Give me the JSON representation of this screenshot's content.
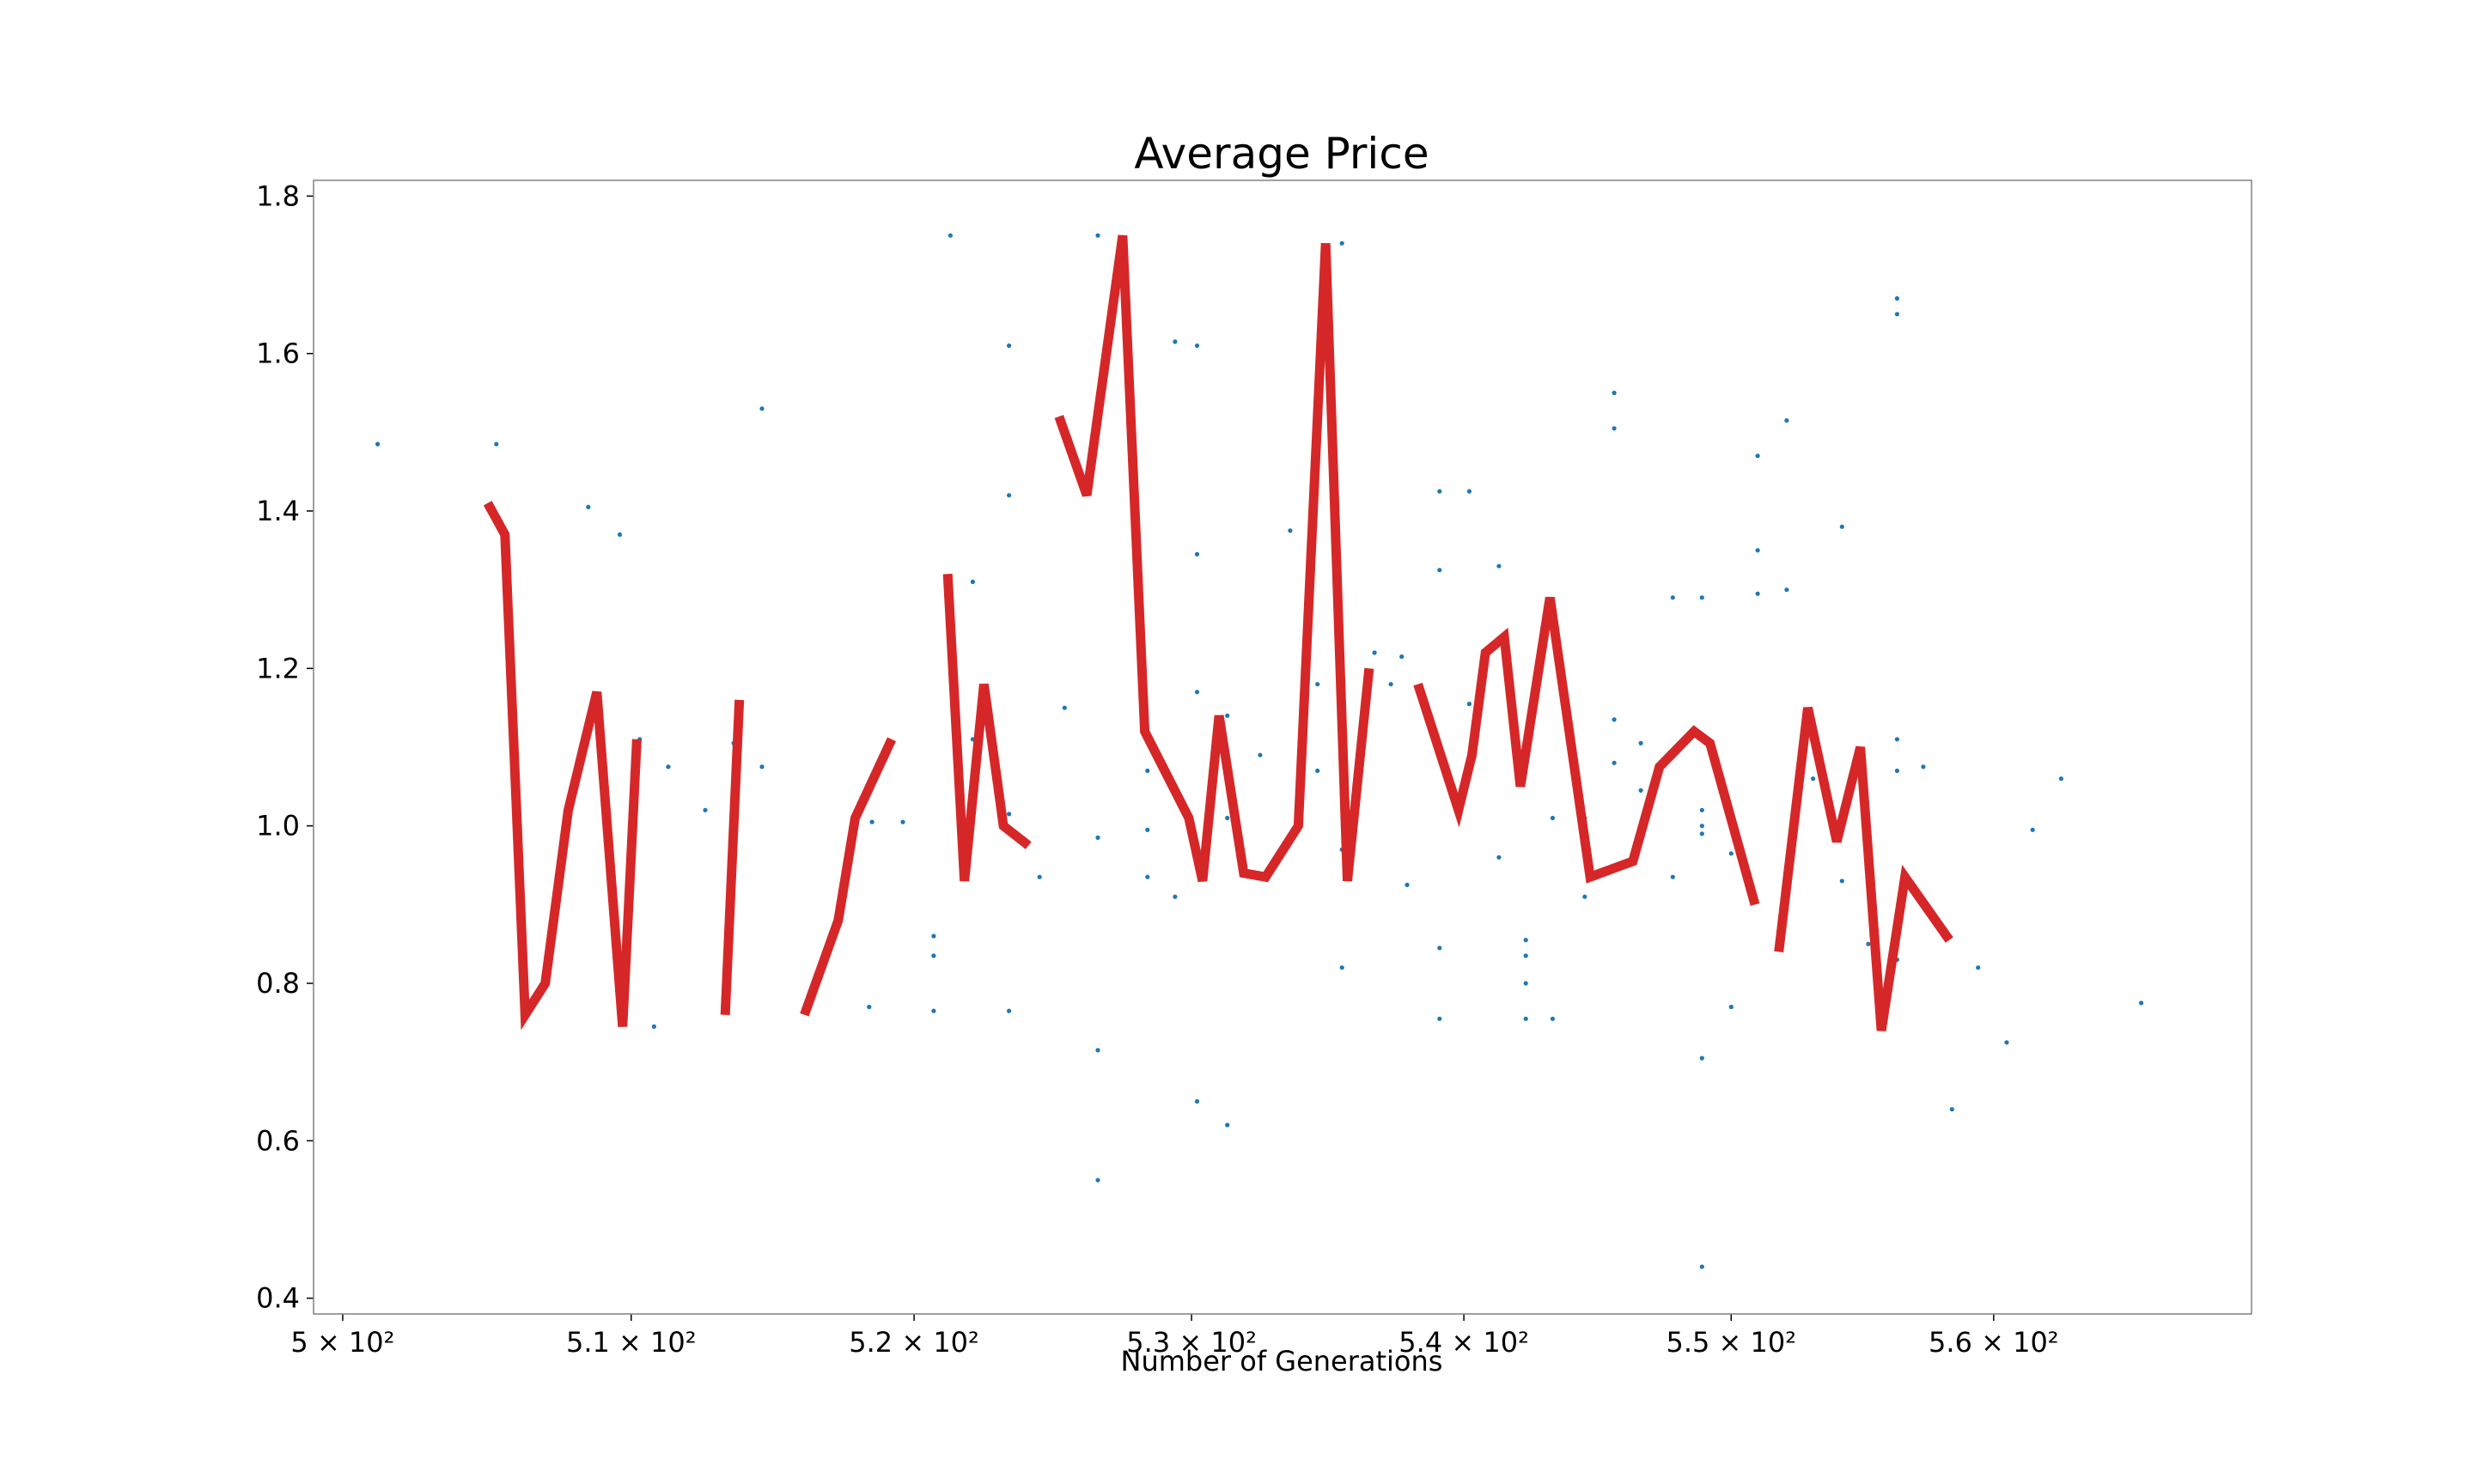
{
  "chart_data": {
    "type": "line",
    "title": "Average Price",
    "xlabel": "Number of Generations",
    "ylabel": "",
    "xscale": "log",
    "xlim": [
      499,
      570
    ],
    "ylim": [
      0.38,
      1.82
    ],
    "grid": false,
    "colors": {
      "line": "#d62728",
      "points": "#1f77b4",
      "frame": "#808080"
    },
    "x_ticks": [
      {
        "value": 500,
        "label": "5 × 10²"
      },
      {
        "value": 510,
        "label": "5.1 × 10²"
      },
      {
        "value": 520,
        "label": "5.2 × 10²"
      },
      {
        "value": 530,
        "label": "5.3 × 10²"
      },
      {
        "value": 540,
        "label": "5.4 × 10²"
      },
      {
        "value": 550,
        "label": "5.5 × 10²"
      },
      {
        "value": 560,
        "label": "5.6 × 10²"
      }
    ],
    "y_ticks": [
      {
        "value": 0.4,
        "label": "0.4"
      },
      {
        "value": 0.6,
        "label": "0.6"
      },
      {
        "value": 0.8,
        "label": "0.8"
      },
      {
        "value": 1.0,
        "label": "1.0"
      },
      {
        "value": 1.2,
        "label": "1.2"
      },
      {
        "value": 1.4,
        "label": "1.4"
      },
      {
        "value": 1.6,
        "label": "1.6"
      },
      {
        "value": 1.8,
        "label": "1.8"
      }
    ],
    "line_segments": [
      [
        [
          505,
          1.41
        ],
        [
          505.6,
          1.37
        ],
        [
          506.3,
          0.76
        ],
        [
          507,
          0.8
        ],
        [
          507.8,
          1.02
        ],
        [
          508.8,
          1.17
        ],
        [
          509.7,
          0.745
        ],
        [
          510.2,
          1.11
        ]
      ],
      [
        [
          513.3,
          0.76
        ],
        [
          513.8,
          1.16
        ]
      ],
      [
        [
          516.1,
          0.76
        ],
        [
          517.3,
          0.88
        ],
        [
          517.9,
          1.01
        ],
        [
          519.2,
          1.11
        ]
      ],
      [
        [
          521.2,
          1.32
        ],
        [
          521.8,
          0.93
        ],
        [
          522.5,
          1.18
        ],
        [
          523.2,
          1.0
        ],
        [
          524.1,
          0.975
        ]
      ],
      [
        [
          525.2,
          1.52
        ],
        [
          526.2,
          1.42
        ],
        [
          527.5,
          1.75
        ],
        [
          528.3,
          1.12
        ],
        [
          529.9,
          1.01
        ],
        [
          530.4,
          0.93
        ],
        [
          531,
          1.14
        ],
        [
          531.9,
          0.94
        ],
        [
          532.7,
          0.935
        ],
        [
          533.9,
          1.0
        ],
        [
          534.9,
          1.74
        ],
        [
          535.7,
          0.93
        ],
        [
          536.5,
          1.2
        ]
      ],
      [
        [
          538.3,
          1.18
        ],
        [
          539.8,
          1.02
        ],
        [
          540.3,
          1.09
        ],
        [
          540.8,
          1.22
        ],
        [
          541.5,
          1.24
        ],
        [
          542.1,
          1.05
        ],
        [
          543.2,
          1.29
        ],
        [
          544.7,
          0.935
        ],
        [
          546.3,
          0.955
        ],
        [
          547.3,
          1.075
        ],
        [
          548.6,
          1.12
        ],
        [
          549.2,
          1.105
        ],
        [
          550.9,
          0.9
        ]
      ],
      [
        [
          551.8,
          0.84
        ],
        [
          552.9,
          1.15
        ],
        [
          554,
          0.98
        ],
        [
          554.9,
          1.1
        ],
        [
          555.7,
          0.74
        ],
        [
          556.6,
          0.935
        ],
        [
          558.3,
          0.855
        ]
      ]
    ],
    "scatter_points": [
      [
        501.2,
        1.485
      ],
      [
        505.3,
        1.485
      ],
      [
        508.5,
        1.405
      ],
      [
        509.6,
        1.37
      ],
      [
        510.3,
        1.11
      ],
      [
        510.8,
        0.745
      ],
      [
        511.3,
        1.075
      ],
      [
        512.6,
        1.02
      ],
      [
        513.6,
        1.105
      ],
      [
        514.6,
        1.53
      ],
      [
        514.6,
        1.075
      ],
      [
        518.4,
        0.77
      ],
      [
        518.5,
        1.005
      ],
      [
        519.6,
        1.005
      ],
      [
        520.7,
        0.86
      ],
      [
        520.7,
        0.835
      ],
      [
        520.7,
        0.765
      ],
      [
        521.3,
        1.75
      ],
      [
        522.1,
        1.31
      ],
      [
        522.1,
        1.11
      ],
      [
        523.4,
        1.61
      ],
      [
        523.4,
        1.42
      ],
      [
        523.4,
        1.015
      ],
      [
        523.4,
        0.765
      ],
      [
        524.5,
        0.935
      ],
      [
        525.4,
        1.15
      ],
      [
        526.6,
        1.75
      ],
      [
        526.6,
        0.985
      ],
      [
        526.6,
        0.715
      ],
      [
        526.6,
        0.55
      ],
      [
        528.4,
        1.07
      ],
      [
        528.4,
        0.995
      ],
      [
        528.4,
        0.935
      ],
      [
        529.4,
        1.615
      ],
      [
        529.4,
        0.91
      ],
      [
        530.2,
        1.61
      ],
      [
        530.2,
        1.345
      ],
      [
        530.2,
        1.17
      ],
      [
        530.2,
        0.65
      ],
      [
        531.3,
        1.14
      ],
      [
        531.3,
        1.01
      ],
      [
        531.3,
        0.62
      ],
      [
        532.5,
        1.09
      ],
      [
        533.6,
        1.375
      ],
      [
        534.6,
        1.18
      ],
      [
        534.6,
        1.07
      ],
      [
        535.5,
        1.74
      ],
      [
        535.5,
        0.97
      ],
      [
        535.5,
        0.82
      ],
      [
        536.7,
        1.22
      ],
      [
        537.3,
        1.18
      ],
      [
        537.7,
        1.215
      ],
      [
        537.9,
        0.925
      ],
      [
        539.1,
        1.425
      ],
      [
        539.1,
        1.325
      ],
      [
        539.1,
        0.845
      ],
      [
        539.1,
        0.755
      ],
      [
        540.2,
        1.425
      ],
      [
        540.2,
        1.155
      ],
      [
        540.2,
        1.085
      ],
      [
        541.3,
        1.33
      ],
      [
        541.3,
        0.96
      ],
      [
        542.3,
        0.855
      ],
      [
        542.3,
        0.835
      ],
      [
        542.3,
        0.8
      ],
      [
        542.3,
        0.755
      ],
      [
        543.3,
        1.01
      ],
      [
        543.3,
        0.755
      ],
      [
        544.5,
        1.01
      ],
      [
        544.5,
        0.91
      ],
      [
        545.6,
        1.55
      ],
      [
        545.6,
        1.505
      ],
      [
        545.6,
        1.135
      ],
      [
        545.6,
        1.08
      ],
      [
        546.6,
        1.105
      ],
      [
        546.6,
        1.045
      ],
      [
        547.8,
        1.29
      ],
      [
        547.8,
        0.935
      ],
      [
        548.9,
        1.29
      ],
      [
        548.9,
        1.02
      ],
      [
        548.9,
        1.0
      ],
      [
        548.9,
        0.99
      ],
      [
        548.9,
        0.705
      ],
      [
        548.9,
        0.44
      ],
      [
        550,
        0.965
      ],
      [
        550,
        0.77
      ],
      [
        551,
        1.47
      ],
      [
        551,
        1.35
      ],
      [
        551,
        1.295
      ],
      [
        552.1,
        1.515
      ],
      [
        552.1,
        1.3
      ],
      [
        553.1,
        1.06
      ],
      [
        554.2,
        1.38
      ],
      [
        554.2,
        0.93
      ],
      [
        555.2,
        1.005
      ],
      [
        555.2,
        0.85
      ],
      [
        556.3,
        1.67
      ],
      [
        556.3,
        1.65
      ],
      [
        556.3,
        1.11
      ],
      [
        556.3,
        1.07
      ],
      [
        556.3,
        0.83
      ],
      [
        557.3,
        1.075
      ],
      [
        558.4,
        0.64
      ],
      [
        559.4,
        0.82
      ],
      [
        560.5,
        0.725
      ],
      [
        561.5,
        0.995
      ],
      [
        562.6,
        1.06
      ],
      [
        565.7,
        0.775
      ]
    ]
  }
}
